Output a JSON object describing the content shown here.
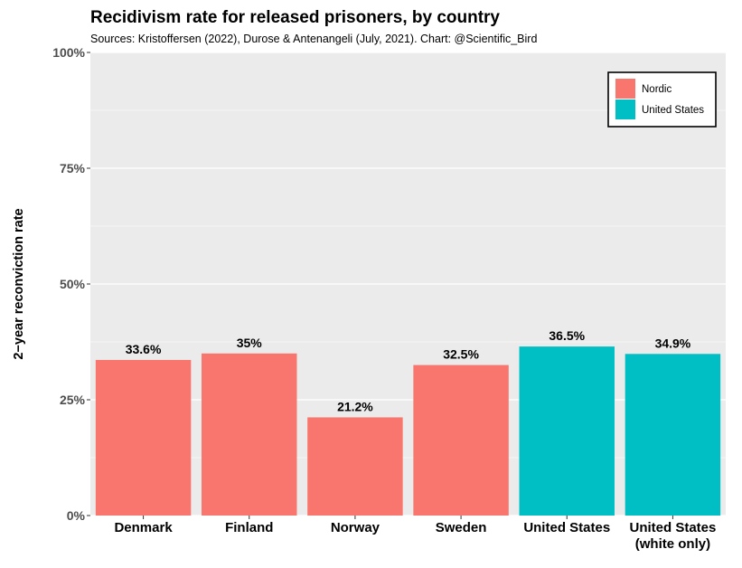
{
  "chart_data": {
    "type": "bar",
    "title": "Recidivism rate for released prisoners, by country",
    "subtitle": "Sources: Kristoffersen (2022), Durose & Antenangeli (July, 2021). Chart: @Scientific_Bird",
    "xlabel": "",
    "ylabel": "2−year reconviction rate",
    "ylim": [
      0,
      100
    ],
    "yticks": [
      0,
      25,
      50,
      75,
      100
    ],
    "ytick_labels": [
      "0%",
      "25%",
      "50%",
      "75%",
      "100%"
    ],
    "grid": true,
    "legend_position": "top-right",
    "categories": [
      [
        "Denmark"
      ],
      [
        "Finland"
      ],
      [
        "Norway"
      ],
      [
        "Sweden"
      ],
      [
        "United States"
      ],
      [
        "United States",
        "(white only)"
      ]
    ],
    "values": [
      33.6,
      35,
      21.2,
      32.5,
      36.5,
      34.9
    ],
    "value_labels": [
      "33.6%",
      "35%",
      "21.2%",
      "32.5%",
      "36.5%",
      "34.9%"
    ],
    "groups": [
      "Nordic",
      "Nordic",
      "Nordic",
      "Nordic",
      "United States",
      "United States"
    ],
    "legend": [
      {
        "name": "Nordic",
        "color": "#F8766D"
      },
      {
        "name": "United States",
        "color": "#00BFC4"
      }
    ],
    "panel_color": "#EBEBEB",
    "grid_color": "#FFFFFF"
  }
}
